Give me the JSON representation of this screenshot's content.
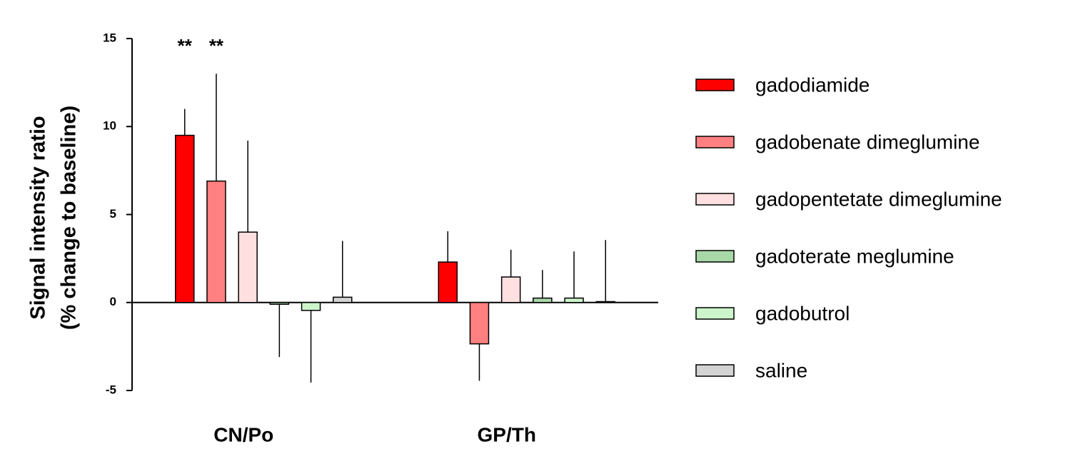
{
  "chart_data": {
    "type": "bar",
    "ylabel": [
      "Signal intensity  ratio",
      "(% change to baseline)"
    ],
    "categories": [
      "CN/Po",
      "GP/Th"
    ],
    "ylim": [
      -5,
      15
    ],
    "yticks": [
      -5,
      0,
      5,
      10,
      15
    ],
    "series": [
      {
        "name": "gadodiamide",
        "color": "#ff0000",
        "values": [
          9.5,
          2.3
        ],
        "errors": [
          1.5,
          1.75
        ],
        "annotations": [
          "**",
          null
        ]
      },
      {
        "name": "gadobenate dimeglumine",
        "color": "#ff8080",
        "values": [
          6.9,
          -2.35
        ],
        "errors": [
          6.1,
          2.1
        ],
        "annotations": [
          "**",
          null
        ]
      },
      {
        "name": "gadopentetate dimeglumine",
        "color": "#ffdfdf",
        "values": [
          4.0,
          1.45
        ],
        "errors": [
          5.2,
          1.55
        ]
      },
      {
        "name": "gadoterate meglumine",
        "color": "#a8d8a8",
        "values": [
          -0.1,
          0.25
        ],
        "errors": [
          3.0,
          1.6
        ]
      },
      {
        "name": "gadobutrol",
        "color": "#ccf5cc",
        "values": [
          -0.45,
          0.25
        ],
        "errors": [
          4.1,
          2.65
        ]
      },
      {
        "name": "saline",
        "color": "#d3d3d3",
        "values": [
          0.3,
          0.05
        ],
        "errors": [
          3.2,
          3.5
        ]
      }
    ]
  }
}
